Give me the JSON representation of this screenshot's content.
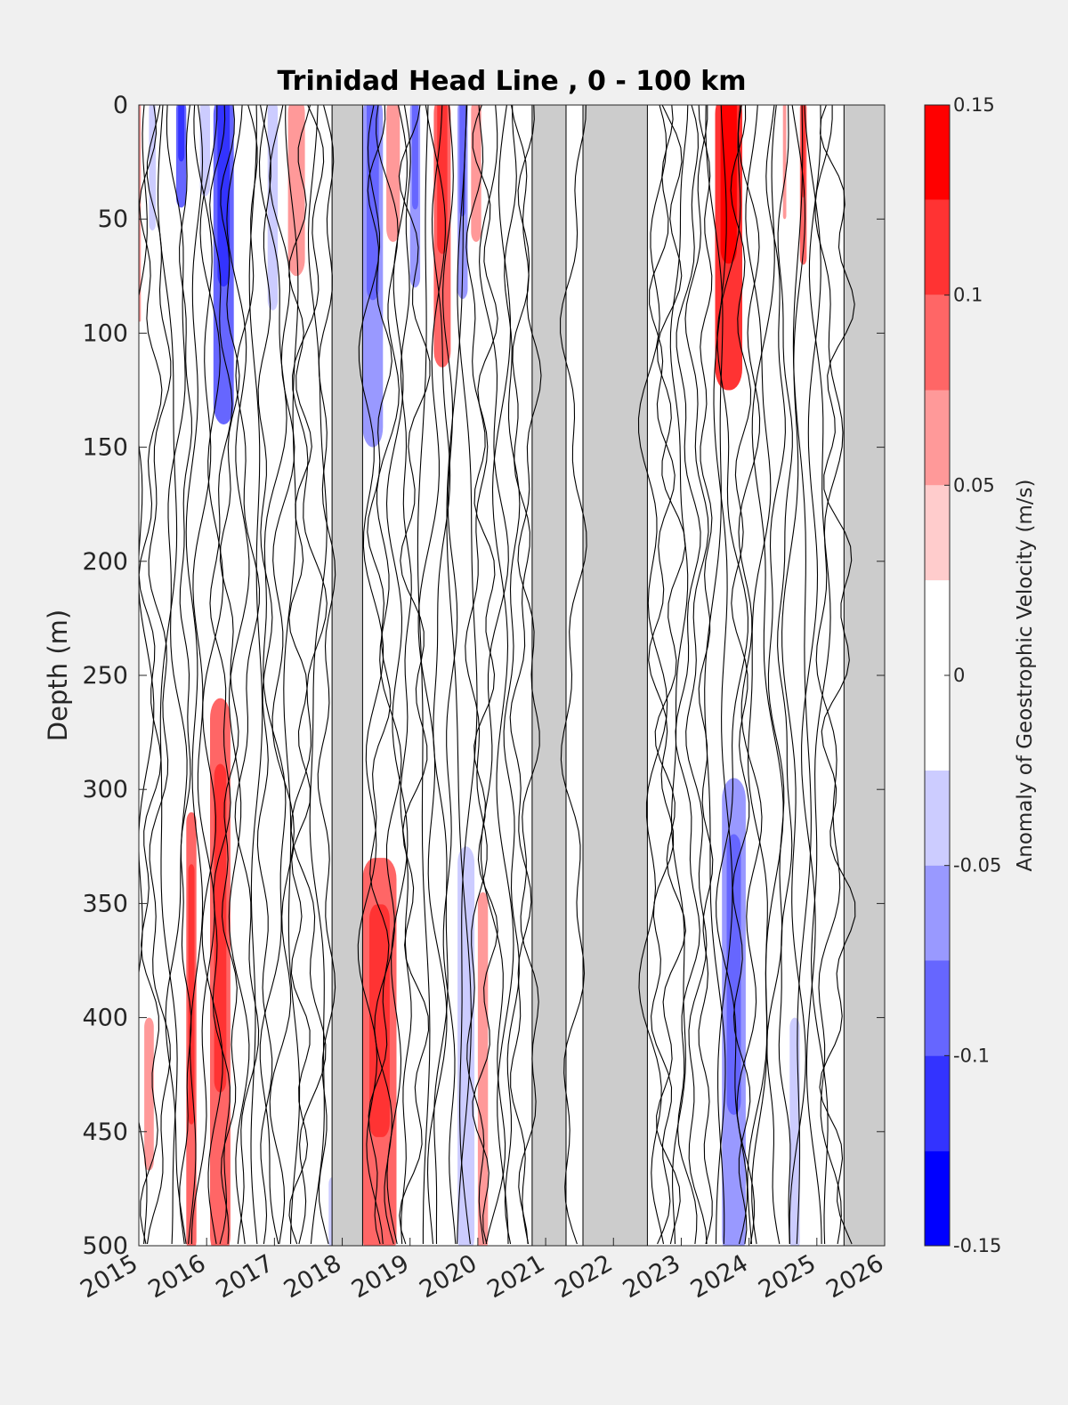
{
  "chart_data": {
    "type": "heatmap",
    "title": "Trinidad Head Line , 0 - 100 km",
    "xlabel": "",
    "ylabel": "Depth (m)",
    "x_ticks": [
      "2015",
      "2016",
      "2017",
      "2018",
      "2019",
      "2020",
      "2021",
      "2022",
      "2023",
      "2024",
      "2025",
      "2026"
    ],
    "y_ticks": [
      0,
      50,
      100,
      150,
      200,
      250,
      300,
      350,
      400,
      450,
      500
    ],
    "xlim": [
      2015,
      2026
    ],
    "ylim": [
      0,
      500
    ],
    "y_reversed": true,
    "colorbar": {
      "label": "Anomaly of Geostrophic Velocity (m/s)",
      "range": [
        -0.15,
        0.15
      ],
      "tick_labels": [
        "0.15",
        "0.1",
        "0.05",
        "0",
        "-0.05",
        "-0.1",
        "-0.15"
      ],
      "tick_values": [
        0.15,
        0.1,
        0.05,
        0,
        -0.05,
        -0.1,
        -0.15
      ],
      "levels": [
        -0.15,
        -0.125,
        -0.1,
        -0.075,
        -0.05,
        -0.025,
        0.025,
        0.05,
        0.075,
        0.1,
        0.125,
        0.15
      ],
      "colors": [
        "#0000ff",
        "#3333ff",
        "#6666ff",
        "#9999ff",
        "#ccccff",
        "#ffffff",
        "#ffcccc",
        "#ff9999",
        "#ff6666",
        "#ff3333",
        "#ff0000"
      ]
    },
    "no_data_color": "#cccccc",
    "no_data_periods": [
      [
        2017.85,
        2018.3
      ],
      [
        2020.8,
        2021.3
      ],
      [
        2021.55,
        2022.5
      ],
      [
        2025.4,
        2026.0
      ]
    ],
    "anomaly_features": [
      {
        "t0": 2015.0,
        "t1": 2015.03,
        "z0": 0,
        "z1": 95,
        "value": 0.05
      },
      {
        "t0": 2015.15,
        "t1": 2015.25,
        "z0": 0,
        "z1": 55,
        "value": -0.05
      },
      {
        "t0": 2015.55,
        "t1": 2015.7,
        "z0": 0,
        "z1": 45,
        "value": -0.1
      },
      {
        "t0": 2015.9,
        "t1": 2016.05,
        "z0": 0,
        "z1": 40,
        "value": -0.05
      },
      {
        "t0": 2016.1,
        "t1": 2016.4,
        "z0": 0,
        "z1": 140,
        "value": -0.1
      },
      {
        "t0": 2016.9,
        "t1": 2017.05,
        "z0": 0,
        "z1": 90,
        "value": -0.05
      },
      {
        "t0": 2017.2,
        "t1": 2017.45,
        "z0": 0,
        "z1": 75,
        "value": 0.05
      },
      {
        "t0": 2018.3,
        "t1": 2018.6,
        "z0": 0,
        "z1": 150,
        "value": -0.075
      },
      {
        "t0": 2018.65,
        "t1": 2018.85,
        "z0": 0,
        "z1": 60,
        "value": 0.05
      },
      {
        "t0": 2019.0,
        "t1": 2019.15,
        "z0": 0,
        "z1": 80,
        "value": -0.075
      },
      {
        "t0": 2019.35,
        "t1": 2019.6,
        "z0": 0,
        "z1": 115,
        "value": 0.075
      },
      {
        "t0": 2019.7,
        "t1": 2019.85,
        "z0": 0,
        "z1": 85,
        "value": -0.075
      },
      {
        "t0": 2019.9,
        "t1": 2020.05,
        "z0": 0,
        "z1": 60,
        "value": 0.05
      },
      {
        "t0": 2023.5,
        "t1": 2023.9,
        "z0": 0,
        "z1": 125,
        "value": 0.1
      },
      {
        "t0": 2024.5,
        "t1": 2024.55,
        "z0": 0,
        "z1": 50,
        "value": 0.05
      },
      {
        "t0": 2024.75,
        "t1": 2024.85,
        "z0": 0,
        "z1": 70,
        "value": 0.075
      },
      {
        "t0": 2015.08,
        "t1": 2015.22,
        "z0": 400,
        "z1": 465,
        "value": 0.05
      },
      {
        "t0": 2015.7,
        "t1": 2015.85,
        "z0": 310,
        "z1": 500,
        "value": 0.075
      },
      {
        "t0": 2016.05,
        "t1": 2016.35,
        "z0": 260,
        "z1": 500,
        "value": 0.075
      },
      {
        "t0": 2017.8,
        "t1": 2017.9,
        "z0": 470,
        "z1": 500,
        "value": -0.05
      },
      {
        "t0": 2018.3,
        "t1": 2018.8,
        "z0": 330,
        "z1": 500,
        "value": 0.075
      },
      {
        "t0": 2019.7,
        "t1": 2019.95,
        "z0": 325,
        "z1": 500,
        "value": -0.05
      },
      {
        "t0": 2020.0,
        "t1": 2020.15,
        "z0": 345,
        "z1": 500,
        "value": 0.05
      },
      {
        "t0": 2023.6,
        "t1": 2023.95,
        "z0": 295,
        "z1": 500,
        "value": -0.075
      },
      {
        "t0": 2024.6,
        "t1": 2024.75,
        "z0": 400,
        "z1": 500,
        "value": -0.05
      }
    ]
  }
}
